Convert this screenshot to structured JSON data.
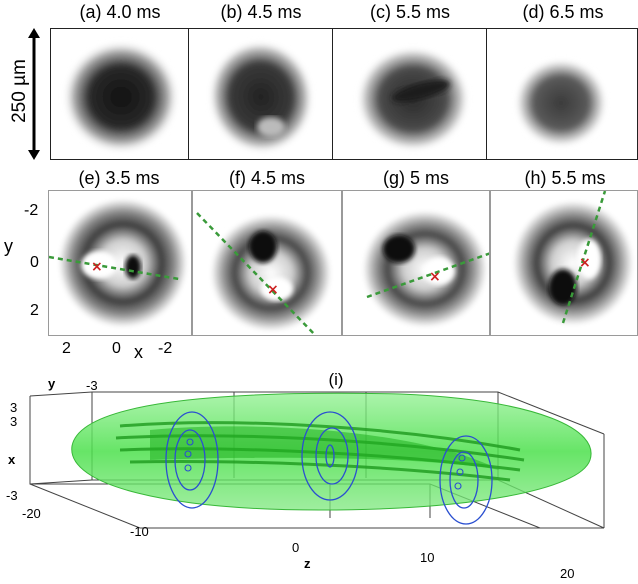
{
  "row1": {
    "scale_label": "250 µm",
    "panels": [
      {
        "label": "(a) 4.0 ms"
      },
      {
        "label": "(b) 4.5 ms"
      },
      {
        "label": "(c) 5.5 ms"
      },
      {
        "label": "(d) 6.5 ms"
      }
    ]
  },
  "row2": {
    "panels": [
      {
        "label": "(e) 3.5 ms"
      },
      {
        "label": "(f) 4.5 ms"
      },
      {
        "label": "(g) 5 ms"
      },
      {
        "label": "(h) 5.5 ms"
      }
    ],
    "y_axis": {
      "label": "y",
      "ticks": [
        "-2",
        "0",
        "2"
      ]
    },
    "x_axis": {
      "label": "x",
      "ticks": [
        "2",
        "0",
        "-2"
      ]
    },
    "marker_color": "#cc2222",
    "line_color": "#3a9a3a"
  },
  "panel_i": {
    "label": "(i)",
    "y_axis": {
      "label": "y",
      "ticks": [
        "3",
        "-3"
      ]
    },
    "x_axis": {
      "label": "x",
      "ticks": [
        "3",
        "-3"
      ]
    },
    "z_axis": {
      "label": "z",
      "ticks": [
        "-20",
        "-10",
        "0",
        "10",
        "20"
      ]
    },
    "surface_color": "#4ce04c",
    "contour_color": "#2a4fd0"
  }
}
